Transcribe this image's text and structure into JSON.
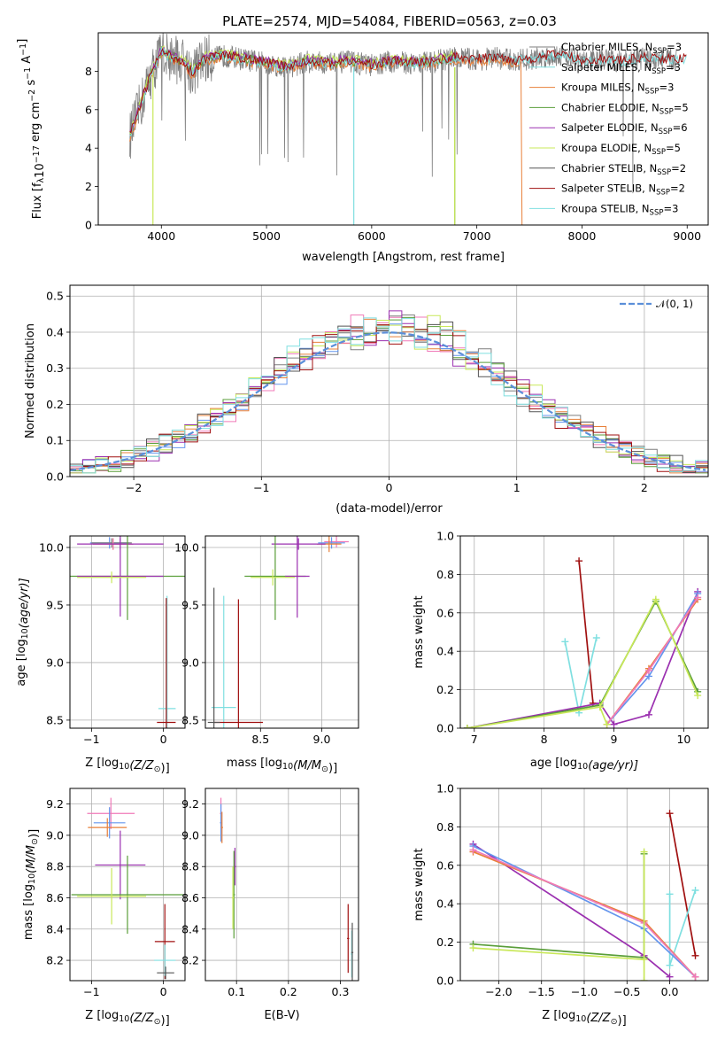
{
  "figure_title": "PLATE=2574, MJD=54084, FIBERID=0563, z=0.03",
  "colors": {
    "chabrier_miles": "#7f7f7f",
    "salpeter_miles": "#6495ed",
    "kroupa_miles": "#e8803a",
    "chabrier_elodie": "#5a9e3a",
    "salpeter_elodie": "#9b30b0",
    "kroupa_elodie": "#c9e85a",
    "chabrier_stelib": "#555555",
    "salpeter_stelib": "#a01010",
    "kroupa_stelib": "#7fdfe0",
    "pink": "#f07ab8",
    "normal": "#5b8fd9"
  },
  "chart_data": [
    {
      "id": "spectrum",
      "type": "line",
      "xlabel": "wavelength [Angstrom, rest frame]",
      "ylabel": "Flux [f",
      "ylabel_sub": "λ",
      "ylabel_rest": "10",
      "ylabel_exp1": "−17",
      "ylabel_unit": " erg cm",
      "ylabel_exp2": "−2",
      "ylabel_s": " s",
      "ylabel_exp3": "−1",
      "ylabel_A": " A",
      "ylabel_exp4": "−1",
      "ylabel_end": "]",
      "xlim": [
        3400,
        9200
      ],
      "ylim": [
        0,
        10
      ],
      "xticks": [
        "4000",
        "5000",
        "6000",
        "7000",
        "8000",
        "9000"
      ],
      "yticks": [
        "0",
        "2",
        "4",
        "6",
        "8"
      ],
      "legend_position": "top-right",
      "legend": [
        {
          "name": "Chabrier MILES, N",
          "sub": "SSP",
          "tail": "=3",
          "color": "chabrier_miles"
        },
        {
          "name": "Salpeter MILES, N",
          "sub": "SSP",
          "tail": "=3",
          "color": "kroupa_stelib"
        },
        {
          "name": "Kroupa MILES, N",
          "sub": "SSP",
          "tail": "=3",
          "color": "kroupa_miles"
        },
        {
          "name": "Chabrier ELODIE, N",
          "sub": "SSP",
          "tail": "=5",
          "color": "chabrier_elodie"
        },
        {
          "name": "Salpeter ELODIE, N",
          "sub": "SSP",
          "tail": "=6",
          "color": "salpeter_elodie"
        },
        {
          "name": "Kroupa ELODIE, N",
          "sub": "SSP",
          "tail": "=5",
          "color": "kroupa_elodie"
        },
        {
          "name": "Chabrier STELIB, N",
          "sub": "SSP",
          "tail": "=2",
          "color": "chabrier_stelib"
        },
        {
          "name": "Salpeter STELIB, N",
          "sub": "SSP",
          "tail": "=2",
          "color": "salpeter_stelib"
        },
        {
          "name": "Kroupa STELIB, N",
          "sub": "SSP",
          "tail": "=3",
          "color": "kroupa_stelib"
        }
      ],
      "continuum": {
        "x": [
          3700,
          3800,
          3900,
          4000,
          4100,
          4200,
          4300,
          4400,
          4600,
          4800,
          5000,
          5200,
          5400,
          5600,
          5800,
          6000,
          6200,
          6400,
          6600,
          6800,
          7000,
          7200,
          7400
        ],
        "y": [
          4.6,
          6.2,
          7.8,
          9.0,
          8.7,
          8.5,
          7.9,
          8.6,
          8.8,
          8.6,
          8.4,
          8.2,
          8.5,
          8.4,
          8.5,
          8.3,
          8.5,
          8.4,
          8.5,
          8.7,
          8.6,
          8.7,
          8.5
        ]
      },
      "stelib_red": {
        "x": [
          3800,
          3900,
          4000,
          4100,
          4200,
          4300,
          4500,
          5000,
          5500,
          6000,
          6500,
          7000,
          7500,
          7800,
          8000,
          8200,
          8400,
          8600,
          8800,
          9000
        ],
        "y": [
          6.2,
          7.6,
          9.0,
          8.6,
          8.4,
          7.8,
          8.6,
          8.4,
          8.5,
          8.6,
          8.7,
          8.8,
          8.6,
          8.9,
          8.5,
          8.6,
          8.5,
          8.7,
          8.6,
          8.6
        ]
      }
    },
    {
      "id": "residuals",
      "type": "step",
      "xlabel": "(data-model)/error",
      "ylabel": "Normed distribution",
      "xlim": [
        -2.5,
        2.5
      ],
      "ylim": [
        0,
        0.53
      ],
      "xticks": [
        "−2",
        "−1",
        "0",
        "1",
        "2"
      ],
      "yticks": [
        "0.0",
        "0.1",
        "0.2",
        "0.3",
        "0.4",
        "0.5"
      ],
      "legend": "𝒩(0, 1)",
      "legend_position": "top-right",
      "bin_width": 0.1
    },
    {
      "id": "age_vs_Z",
      "type": "errorbar",
      "xlabel": "Z [log",
      "xlabel_sub": "10",
      "xlabel_rest": "(Z/Z",
      "xlabel_sun": "⊙",
      "xlabel_end": ")]",
      "ylabel": "age  [log",
      "ylabel_sub": "10",
      "ylabel_rest": "(age/yr)]",
      "xlim": [
        -1.3,
        0.3
      ],
      "ylim": [
        8.43,
        10.1
      ],
      "xticks": [
        "−1",
        "0"
      ],
      "yticks": [
        "8.5",
        "9.0",
        "9.5",
        "10.0"
      ],
      "points": [
        {
          "x": -0.75,
          "y": 10.04,
          "xerr": 0.27,
          "yerr": 0.05,
          "color": "salpeter_miles"
        },
        {
          "x": -0.72,
          "y": 10.04,
          "xerr": 0.28,
          "yerr": 0.04,
          "color": "chabrier_miles"
        },
        {
          "x": -0.7,
          "y": 10.03,
          "xerr": 0.28,
          "yerr": 0.05,
          "color": "kroupa_miles"
        },
        {
          "x": -0.7,
          "y": 10.03,
          "xerr": 0.28,
          "yerr": 0.05,
          "color": "pink"
        },
        {
          "x": -0.6,
          "y": 10.03,
          "xerr": 0.6,
          "yerr": 0.05,
          "color": "salpeter_elodie"
        },
        {
          "x": -0.5,
          "y": 9.75,
          "xerr": 0.8,
          "yerr": 0.38,
          "color": "chabrier_elodie"
        },
        {
          "x": -0.6,
          "y": 9.75,
          "xerr": 0.6,
          "yerr": 0.35,
          "color": "salpeter_elodie"
        },
        {
          "x": -0.72,
          "y": 9.74,
          "xerr": 0.48,
          "yerr": 0.05,
          "color": "kroupa_elodie"
        },
        {
          "x": 0.05,
          "y": 8.6,
          "xerr": 0.12,
          "yerr": 0.98,
          "color": "kroupa_stelib"
        },
        {
          "x": 0.04,
          "y": 8.48,
          "xerr": 0.13,
          "yerr": 1.08,
          "color": "salpeter_stelib"
        }
      ]
    },
    {
      "id": "age_vs_mass",
      "type": "errorbar",
      "xlabel": "mass [log",
      "xlabel_sub": "10",
      "xlabel_rest": "(M/M",
      "xlabel_sun": "⊙",
      "xlabel_end": ")]",
      "xlim": [
        8.05,
        9.3
      ],
      "ylim": [
        8.43,
        10.1
      ],
      "xticks": [
        "8.5",
        "9.0"
      ],
      "yticks": [
        "8.5",
        "9.0",
        "9.5",
        "10.0"
      ],
      "points": [
        {
          "x": 9.12,
          "y": 10.05,
          "xerr": 0.1,
          "yerr": 0.05,
          "color": "pink"
        },
        {
          "x": 9.08,
          "y": 10.04,
          "xerr": 0.11,
          "yerr": 0.05,
          "color": "salpeter_miles"
        },
        {
          "x": 9.06,
          "y": 10.03,
          "xerr": 0.1,
          "yerr": 0.07,
          "color": "kroupa_miles"
        },
        {
          "x": 8.81,
          "y": 10.03,
          "xerr": 0.22,
          "yerr": 0.05,
          "color": "salpeter_elodie"
        },
        {
          "x": 8.62,
          "y": 9.75,
          "xerr": 0.25,
          "yerr": 0.38,
          "color": "chabrier_elodie"
        },
        {
          "x": 8.8,
          "y": 9.75,
          "xerr": 0.1,
          "yerr": 0.36,
          "color": "salpeter_elodie"
        },
        {
          "x": 8.6,
          "y": 9.74,
          "xerr": 0.18,
          "yerr": 0.07,
          "color": "kroupa_elodie"
        },
        {
          "x": 8.2,
          "y": 8.61,
          "xerr": 0.1,
          "yerr": 0.97,
          "color": "kroupa_stelib"
        },
        {
          "x": 8.32,
          "y": 8.48,
          "xerr": 0.2,
          "yerr": 1.07,
          "color": "salpeter_stelib"
        },
        {
          "x": 8.12,
          "y": 8.48,
          "xerr": 0.05,
          "yerr": 1.17,
          "color": "chabrier_stelib"
        }
      ]
    },
    {
      "id": "mass_weight_vs_age",
      "type": "line",
      "xlabel": "age  [log",
      "xlabel_sub": "10",
      "xlabel_rest": "(age/yr)]",
      "ylabel": "mass weight",
      "xlim": [
        6.8,
        10.35
      ],
      "ylim": [
        0,
        1
      ],
      "xticks": [
        "7",
        "8",
        "9",
        "10"
      ],
      "yticks": [
        "0.0",
        "0.2",
        "0.4",
        "0.6",
        "0.8",
        "1.0"
      ],
      "series": [
        {
          "color": "salpeter_stelib",
          "x": [
            8.5,
            8.7
          ],
          "y": [
            0.87,
            0.13
          ]
        },
        {
          "color": "kroupa_stelib",
          "x": [
            8.3,
            8.5,
            8.75
          ],
          "y": [
            0.45,
            0.08,
            0.47
          ]
        },
        {
          "color": "salpeter_elodie",
          "x": [
            6.9,
            8.8,
            9.0,
            9.5,
            10.2
          ],
          "y": [
            0.0,
            0.13,
            0.02,
            0.07,
            0.71
          ]
        },
        {
          "color": "salpeter_miles",
          "x": [
            8.9,
            9.5,
            10.2
          ],
          "y": [
            0.02,
            0.27,
            0.7
          ]
        },
        {
          "color": "kroupa_miles",
          "x": [
            8.9,
            9.5,
            10.2
          ],
          "y": [
            0.02,
            0.31,
            0.67
          ]
        },
        {
          "color": "pink",
          "x": [
            8.9,
            9.5,
            10.2
          ],
          "y": [
            0.02,
            0.3,
            0.68
          ]
        },
        {
          "color": "chabrier_elodie",
          "x": [
            6.9,
            8.8,
            9.6,
            10.2
          ],
          "y": [
            0.0,
            0.12,
            0.66,
            0.19
          ]
        },
        {
          "color": "kroupa_elodie",
          "x": [
            6.9,
            8.8,
            9.6,
            10.2
          ],
          "y": [
            0.0,
            0.11,
            0.67,
            0.17
          ]
        },
        {
          "color": "kroupa_elodie",
          "x": [
            8.8,
            8.9
          ],
          "y": [
            0.11,
            0.02
          ]
        }
      ]
    },
    {
      "id": "mass_vs_Z",
      "type": "errorbar",
      "xlabel": "Z [log",
      "xlabel_sub": "10",
      "xlabel_rest": "(Z/Z",
      "xlabel_sun": "⊙",
      "xlabel_end": ")]",
      "ylabel": "mass [log",
      "ylabel_sub": "10",
      "ylabel_rest": "(M/M",
      "ylabel_sun": "⊙",
      "ylabel_end": ")]",
      "xlim": [
        -1.3,
        0.3
      ],
      "ylim": [
        8.07,
        9.3
      ],
      "xticks": [
        "−1",
        "0"
      ],
      "yticks": [
        "8.2",
        "8.4",
        "8.6",
        "8.8",
        "9.0",
        "9.2"
      ],
      "points": [
        {
          "x": -0.73,
          "y": 9.14,
          "xerr": 0.33,
          "yerr": 0.1,
          "color": "pink"
        },
        {
          "x": -0.75,
          "y": 9.08,
          "xerr": 0.22,
          "yerr": 0.1,
          "color": "salpeter_miles"
        },
        {
          "x": -0.78,
          "y": 9.05,
          "xerr": 0.27,
          "yerr": 0.06,
          "color": "kroupa_miles"
        },
        {
          "x": -0.6,
          "y": 8.81,
          "xerr": 0.35,
          "yerr": 0.22,
          "color": "salpeter_elodie"
        },
        {
          "x": -0.5,
          "y": 8.62,
          "xerr": 0.78,
          "yerr": 0.25,
          "color": "chabrier_elodie"
        },
        {
          "x": -0.72,
          "y": 8.61,
          "xerr": 0.48,
          "yerr": 0.18,
          "color": "kroupa_elodie"
        },
        {
          "x": 0.02,
          "y": 8.32,
          "xerr": 0.14,
          "yerr": 0.24,
          "color": "salpeter_stelib"
        },
        {
          "x": 0.02,
          "y": 8.2,
          "xerr": 0.15,
          "yerr": 0.1,
          "color": "kroupa_stelib"
        },
        {
          "x": 0.03,
          "y": 8.12,
          "xerr": 0.12,
          "yerr": 0.04,
          "color": "chabrier_stelib"
        }
      ]
    },
    {
      "id": "mass_vs_ebv",
      "type": "errorbar",
      "xlabel": "E(B-V)",
      "xlim": [
        0.04,
        0.335
      ],
      "ylim": [
        8.07,
        9.3
      ],
      "xticks": [
        "0.1",
        "0.2",
        "0.3"
      ],
      "yticks": [
        "8.2",
        "8.4",
        "8.6",
        "8.8",
        "9.0",
        "9.2"
      ],
      "points": [
        {
          "x": 0.07,
          "y": 9.14,
          "xerr": 0.002,
          "yerr": 0.1,
          "color": "pink"
        },
        {
          "x": 0.07,
          "y": 9.08,
          "xerr": 0.002,
          "yerr": 0.12,
          "color": "salpeter_miles"
        },
        {
          "x": 0.072,
          "y": 9.05,
          "xerr": 0.002,
          "yerr": 0.1,
          "color": "kroupa_miles"
        },
        {
          "x": 0.097,
          "y": 8.8,
          "xerr": 0.002,
          "yerr": 0.12,
          "color": "salpeter_elodie"
        },
        {
          "x": 0.095,
          "y": 8.62,
          "xerr": 0.002,
          "yerr": 0.28,
          "color": "chabrier_elodie"
        },
        {
          "x": 0.093,
          "y": 8.6,
          "xerr": 0.002,
          "yerr": 0.2,
          "color": "kroupa_elodie"
        },
        {
          "x": 0.315,
          "y": 8.34,
          "xerr": 0.002,
          "yerr": 0.22,
          "color": "salpeter_stelib"
        },
        {
          "x": 0.322,
          "y": 8.24,
          "xerr": 0.002,
          "yerr": 0.15,
          "color": "kroupa_stelib"
        },
        {
          "x": 0.323,
          "y": 8.25,
          "xerr": 0.002,
          "yerr": 0.19,
          "color": "chabrier_stelib"
        }
      ]
    },
    {
      "id": "mass_weight_vs_Z",
      "type": "line",
      "xlabel": "Z [log",
      "xlabel_sub": "10",
      "xlabel_rest": "(Z/Z",
      "xlabel_sun": "⊙",
      "xlabel_end": ")]",
      "ylabel": "mass weight",
      "xlim": [
        -2.45,
        0.45
      ],
      "ylim": [
        0,
        1
      ],
      "xticks": [
        "−2.0",
        "−1.5",
        "−1.0",
        "−0.5",
        "0.0"
      ],
      "yticks": [
        "0.0",
        "0.2",
        "0.4",
        "0.6",
        "0.8",
        "1.0"
      ],
      "series": [
        {
          "color": "salpeter_stelib",
          "x": [
            0.0,
            0.3
          ],
          "y": [
            0.87,
            0.13
          ]
        },
        {
          "color": "kroupa_stelib",
          "x": [
            0.0,
            0.0,
            0.3
          ],
          "y": [
            0.45,
            0.08,
            0.47
          ]
        },
        {
          "color": "salpeter_elodie",
          "x": [
            -2.3,
            -0.3,
            0.0
          ],
          "y": [
            0.71,
            0.13,
            0.02
          ]
        },
        {
          "color": "salpeter_miles",
          "x": [
            -2.3,
            -0.3,
            0.3
          ],
          "y": [
            0.7,
            0.27,
            0.02
          ]
        },
        {
          "color": "kroupa_miles",
          "x": [
            -2.3,
            -0.3,
            0.3
          ],
          "y": [
            0.67,
            0.31,
            0.02
          ]
        },
        {
          "color": "pink",
          "x": [
            -2.3,
            -0.3,
            0.3
          ],
          "y": [
            0.68,
            0.3,
            0.02
          ]
        },
        {
          "color": "chabrier_elodie",
          "x": [
            -2.3,
            -0.3,
            -0.3
          ],
          "y": [
            0.19,
            0.12,
            0.66
          ]
        },
        {
          "color": "kroupa_elodie",
          "x": [
            -2.3,
            -0.3,
            -0.3,
            -0.3
          ],
          "y": [
            0.17,
            0.11,
            0.67,
            0.0
          ]
        }
      ]
    }
  ]
}
